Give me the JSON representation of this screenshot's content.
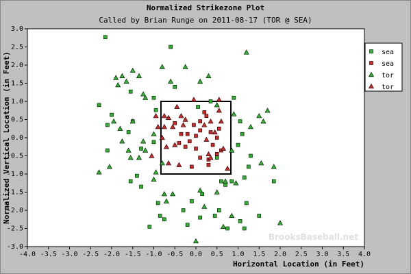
{
  "chart_data": {
    "type": "scatter",
    "title": "Normalized Strikezone Plot",
    "subtitle": "Called by Brian Runge on 2011-08-17 (TOR @ SEA)",
    "xlabel": "Horizontal Location (in Feet)",
    "ylabel": "Normalized Vertical Location (in Feet)",
    "xlim": [
      -4.0,
      4.0
    ],
    "ylim": [
      -3.0,
      3.0
    ],
    "x_ticks": [
      "-4.0",
      "-3.5",
      "-3.0",
      "-2.5",
      "-2.0",
      "-1.5",
      "-1.0",
      "-0.5",
      "0.0",
      "0.5",
      "1.0",
      "1.5",
      "2.0",
      "2.5",
      "3.0",
      "3.5",
      "4.0"
    ],
    "y_ticks": [
      "3.0",
      "2.5",
      "2.0",
      "1.5",
      "1.0",
      "0.5",
      "0.0",
      "-0.5",
      "-1.0",
      "-1.5",
      "-2.0",
      "-2.5",
      "-3.0"
    ],
    "grid": false,
    "legend_position": "top-right",
    "strike_zone": {
      "x": [
        -0.83,
        0.83
      ],
      "y": [
        -1.0,
        1.0
      ]
    },
    "watermark": "BrooksBaseball.net",
    "series": [
      {
        "name": "sea",
        "marker": "square",
        "color": "#22bb22",
        "points": [
          [
            -2.15,
            2.77
          ],
          [
            -1.55,
            1.27
          ],
          [
            -1.0,
            1.1
          ],
          [
            -0.95,
            0.76
          ],
          [
            -2.0,
            0.63
          ],
          [
            -1.5,
            0.45
          ],
          [
            -1.6,
            0.15
          ],
          [
            -2.1,
            -0.35
          ],
          [
            -1.0,
            -0.12
          ],
          [
            -1.3,
            -0.3
          ],
          [
            -1.4,
            -1.05
          ],
          [
            -1.55,
            -1.2
          ],
          [
            -1.3,
            -1.35
          ],
          [
            -0.9,
            -1.8
          ],
          [
            -0.85,
            -2.15
          ],
          [
            -1.1,
            -2.45
          ],
          [
            -0.75,
            -2.25
          ],
          [
            -0.1,
            -1.75
          ],
          [
            0.15,
            -1.55
          ],
          [
            -0.3,
            -2.0
          ],
          [
            0.1,
            -2.2
          ],
          [
            -0.2,
            -2.4
          ],
          [
            0.45,
            -2.15
          ],
          [
            0.55,
            -2.0
          ],
          [
            0.6,
            -1.2
          ],
          [
            0.7,
            -1.3
          ],
          [
            0.85,
            -1.2
          ],
          [
            0.5,
            -0.55
          ],
          [
            1.05,
            0.45
          ],
          [
            1.1,
            0.1
          ],
          [
            1.0,
            -0.2
          ],
          [
            1.3,
            -0.5
          ],
          [
            1.25,
            -0.8
          ],
          [
            1.15,
            -1.1
          ],
          [
            1.2,
            -1.8
          ],
          [
            1.05,
            -2.3
          ],
          [
            1.15,
            -2.5
          ],
          [
            0.75,
            -2.5
          ],
          [
            1.5,
            -2.15
          ],
          [
            1.85,
            -1.2
          ],
          [
            -0.6,
            2.5
          ],
          [
            0.05,
            0.85
          ],
          [
            0.35,
            1.0
          ],
          [
            -2.3,
            0.9
          ],
          [
            -2.1,
            0.35
          ],
          [
            -0.5,
            1.4
          ],
          [
            0.9,
            1.1
          ]
        ]
      },
      {
        "name": "sea",
        "marker": "square",
        "color": "#dd2222",
        "points": [
          [
            -0.05,
            0.35
          ],
          [
            0.0,
            0.05
          ],
          [
            -0.2,
            0.1
          ],
          [
            -0.15,
            -0.1
          ],
          [
            0.1,
            0.2
          ],
          [
            0.35,
            0.15
          ],
          [
            0.5,
            0.0
          ],
          [
            0.4,
            -0.2
          ],
          [
            -0.4,
            -0.15
          ],
          [
            -0.35,
            0.1
          ],
          [
            0.1,
            -0.55
          ],
          [
            0.3,
            -0.6
          ],
          [
            0.5,
            -0.45
          ],
          [
            0.6,
            -0.35
          ],
          [
            0.25,
            0.6
          ],
          [
            0.2,
            0.7
          ],
          [
            -0.1,
            -0.8
          ],
          [
            0.0,
            -0.3
          ],
          [
            -0.5,
            0.4
          ],
          [
            0.55,
            0.25
          ],
          [
            0.1,
            0.45
          ],
          [
            -0.25,
            -0.25
          ],
          [
            0.3,
            -0.75
          ]
        ]
      },
      {
        "name": "tor",
        "marker": "triangle",
        "color": "#22bb22",
        "points": [
          [
            -1.75,
            1.7
          ],
          [
            -1.65,
            1.55
          ],
          [
            -1.9,
            1.65
          ],
          [
            -1.5,
            1.85
          ],
          [
            -1.85,
            1.45
          ],
          [
            -1.35,
            1.7
          ],
          [
            -0.8,
            1.95
          ],
          [
            -0.25,
            1.95
          ],
          [
            0.3,
            1.7
          ],
          [
            0.1,
            1.55
          ],
          [
            -0.6,
            1.55
          ],
          [
            -1.2,
            1.1
          ],
          [
            -1.25,
            1.2
          ],
          [
            -1.5,
            0.45
          ],
          [
            -1.95,
            0.45
          ],
          [
            -1.8,
            0.25
          ],
          [
            -2.05,
            -0.8
          ],
          [
            -1.75,
            -0.1
          ],
          [
            -1.6,
            -0.35
          ],
          [
            -1.55,
            -0.55
          ],
          [
            -1.35,
            -0.55
          ],
          [
            -1.25,
            -0.1
          ],
          [
            -1.0,
            0.1
          ],
          [
            -0.8,
            -0.7
          ],
          [
            -0.95,
            -0.95
          ],
          [
            -1.2,
            -0.35
          ],
          [
            -0.75,
            -1.55
          ],
          [
            -0.55,
            -1.55
          ],
          [
            -0.7,
            -1.75
          ],
          [
            0.1,
            -1.45
          ],
          [
            0.2,
            -1.9
          ],
          [
            0.7,
            -1.2
          ],
          [
            0.95,
            -1.25
          ],
          [
            0.5,
            -1.5
          ],
          [
            0.65,
            -2.45
          ],
          [
            0.85,
            -2.15
          ],
          [
            0.0,
            -2.85
          ],
          [
            0.5,
            0.9
          ],
          [
            0.9,
            0.65
          ],
          [
            0.85,
            -0.35
          ],
          [
            1.3,
            0.3
          ],
          [
            1.5,
            0.6
          ],
          [
            1.55,
            -0.7
          ],
          [
            1.85,
            -0.8
          ],
          [
            1.6,
            0.45
          ],
          [
            1.7,
            0.75
          ],
          [
            1.2,
            2.35
          ],
          [
            2.0,
            -2.35
          ],
          [
            -2.3,
            -0.95
          ],
          [
            -1.0,
            -1.15
          ]
        ]
      },
      {
        "name": "tor",
        "marker": "triangle",
        "color": "#dd2222",
        "points": [
          [
            -0.45,
            0.85
          ],
          [
            -0.65,
            0.55
          ],
          [
            -0.55,
            0.3
          ],
          [
            -0.75,
            0.3
          ],
          [
            -0.9,
            0.3
          ],
          [
            -0.8,
            0.0
          ],
          [
            -0.7,
            -0.25
          ],
          [
            -0.5,
            -0.2
          ],
          [
            -0.35,
            0.6
          ],
          [
            -0.3,
            0.35
          ],
          [
            -0.75,
            0.6
          ],
          [
            -0.05,
            1.05
          ],
          [
            0.55,
            1.05
          ],
          [
            0.55,
            0.75
          ],
          [
            0.35,
            0.45
          ],
          [
            0.6,
            0.45
          ],
          [
            0.2,
            0.35
          ],
          [
            0.3,
            -0.45
          ],
          [
            -0.65,
            -0.7
          ],
          [
            -0.4,
            -0.75
          ],
          [
            0.35,
            -0.55
          ],
          [
            0.65,
            -0.3
          ],
          [
            0.75,
            -0.85
          ],
          [
            -0.95,
            0.6
          ],
          [
            -1.05,
            -0.5
          ],
          [
            0.45,
            0.15
          ],
          [
            0.25,
            -0.05
          ],
          [
            -0.25,
            0.5
          ]
        ]
      }
    ]
  }
}
